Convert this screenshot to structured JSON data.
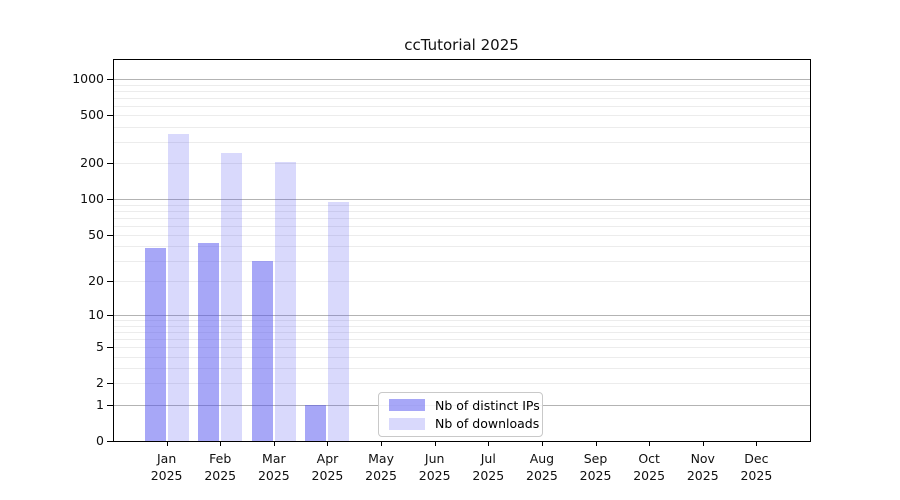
{
  "chart_data": {
    "type": "bar",
    "title": "ccTutorial 2025",
    "categories": [
      "Jan",
      "Feb",
      "Mar",
      "Apr",
      "May",
      "Jun",
      "Jul",
      "Aug",
      "Sep",
      "Oct",
      "Nov",
      "Dec"
    ],
    "category_year": "2025",
    "series": [
      {
        "name": "Nb of distinct IPs",
        "color": "rgba(80,80,240,0.5)",
        "values": [
          39,
          43,
          30,
          1,
          0,
          0,
          0,
          0,
          0,
          0,
          0,
          0
        ]
      },
      {
        "name": "Nb of downloads",
        "color": "rgba(80,80,240,0.22)",
        "values": [
          350,
          245,
          205,
          95,
          0,
          0,
          0,
          0,
          0,
          0,
          0,
          0
        ]
      }
    ],
    "yticks": [
      0,
      1,
      2,
      5,
      10,
      20,
      50,
      100,
      200,
      500,
      1000
    ],
    "ylim": [
      0,
      1000
    ],
    "scale": "log1p",
    "grid": true,
    "legend_position": "lower center",
    "colors": {
      "major_grid": "#b3b3b3",
      "minor_grid": "#ececec",
      "axis": "#000000",
      "background": "#ffffff"
    }
  }
}
